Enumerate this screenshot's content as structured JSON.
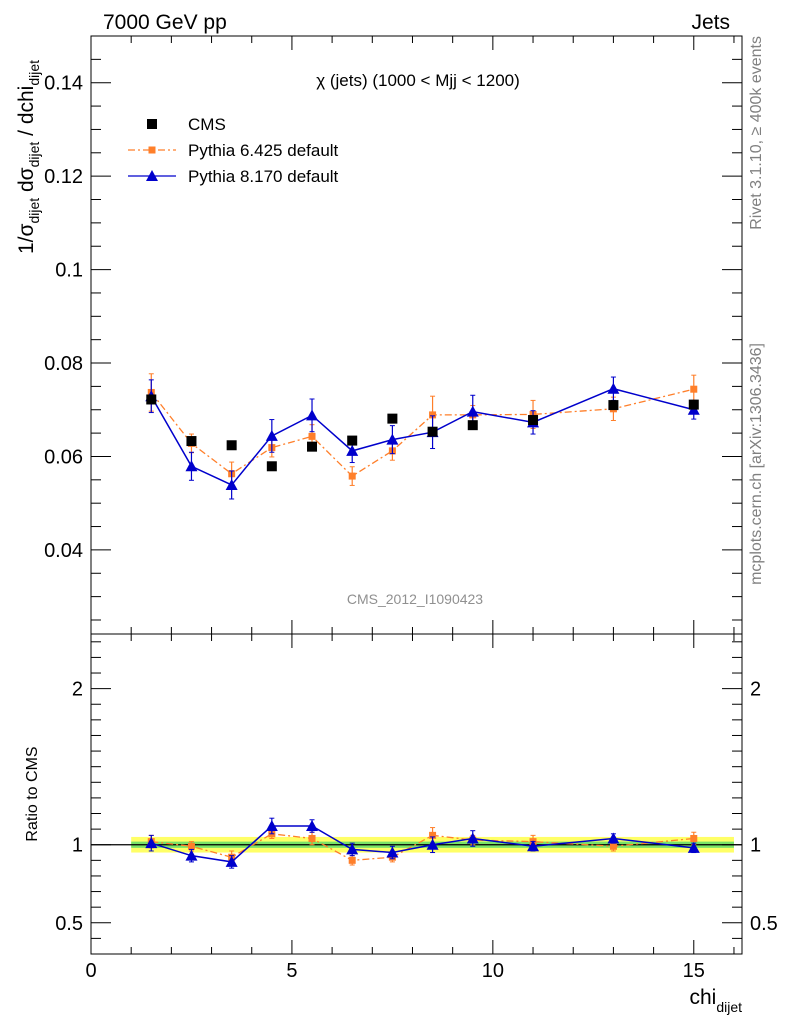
{
  "header": {
    "left": "7000 GeV pp",
    "right": "Jets"
  },
  "side_labels": {
    "rivet": "Rivet 3.1.10, ≥ 400k events",
    "mcplots": "mcplots.cern.ch [arXiv:1306.3436]"
  },
  "colors": {
    "cms": "#000000",
    "pythia6": "#ff7f2a",
    "pythia8": "#0000cc",
    "band_inner": "#4cd96a",
    "band_outer": "#ffff66"
  },
  "chart_data": [
    {
      "type": "scatter",
      "title": "χ (jets) (1000 < Mjj < 1200)",
      "watermark": "CMS_2012_I1090423",
      "ylabel": "1/σdijet dσdijet / dchidijet",
      "ylim": [
        0.022,
        0.15
      ],
      "xlim": [
        0,
        16.2
      ],
      "yticks": [
        {
          "v": 0.04,
          "label": "0.04"
        },
        {
          "v": 0.06,
          "label": "0.06"
        },
        {
          "v": 0.08,
          "label": "0.08"
        },
        {
          "v": 0.1,
          "label": "0.1"
        },
        {
          "v": 0.12,
          "label": "0.12"
        },
        {
          "v": 0.14,
          "label": "0.14"
        }
      ],
      "legend": [
        {
          "label": "CMS",
          "style": "square"
        },
        {
          "label": "Pythia 6.425 default",
          "style": "dashdot-square"
        },
        {
          "label": "Pythia 8.170 default",
          "style": "line-triangle"
        }
      ],
      "x": [
        1.5,
        2.5,
        3.5,
        4.5,
        5.5,
        6.5,
        7.5,
        8.5,
        9.5,
        11,
        13,
        15
      ],
      "series": [
        {
          "name": "CMS",
          "values": [
            0.0722,
            0.0633,
            0.0624,
            0.0579,
            0.0621,
            0.0634,
            0.0681,
            0.0653,
            0.0667,
            0.0678,
            0.071,
            0.0711
          ]
        },
        {
          "name": "Pythia 6.425 default",
          "values": [
            0.0737,
            0.0628,
            0.0563,
            0.0619,
            0.0643,
            0.0558,
            0.0612,
            0.0689,
            0.0689,
            0.069,
            0.0702,
            0.0744
          ],
          "err": [
            0.004,
            0.002,
            0.0025,
            0.002,
            0.0025,
            0.002,
            0.002,
            0.004,
            0.002,
            0.003,
            0.0025,
            0.003
          ]
        },
        {
          "name": "Pythia 8.170 default",
          "values": [
            0.0729,
            0.0579,
            0.0539,
            0.0644,
            0.0688,
            0.0612,
            0.0636,
            0.0652,
            0.0696,
            0.0673,
            0.0745,
            0.07
          ],
          "err": [
            0.0035,
            0.003,
            0.003,
            0.0035,
            0.0035,
            0.0025,
            0.003,
            0.0035,
            0.0035,
            0.0025,
            0.0025,
            0.002
          ]
        }
      ]
    },
    {
      "type": "scatter",
      "ylabel": "Ratio to CMS",
      "xlabel": "chidijet",
      "ylim": [
        0.3,
        2.35
      ],
      "xlim": [
        0,
        16.2
      ],
      "yticks": [
        {
          "v": 0.5,
          "label": "0.5"
        },
        {
          "v": 1,
          "label": "1"
        },
        {
          "v": 2,
          "label": "2"
        }
      ],
      "xticks": [
        {
          "v": 0,
          "label": "0"
        },
        {
          "v": 5,
          "label": "5"
        },
        {
          "v": 10,
          "label": "10"
        },
        {
          "v": 15,
          "label": "15"
        }
      ],
      "band_range": [
        1,
        16
      ],
      "x": [
        1.5,
        2.5,
        3.5,
        4.5,
        5.5,
        6.5,
        7.5,
        8.5,
        9.5,
        11,
        13,
        15
      ],
      "series": [
        {
          "name": "Pythia 6.425 default",
          "values": [
            1.02,
            0.99,
            0.92,
            1.07,
            1.04,
            0.9,
            0.92,
            1.06,
            1.03,
            1.02,
            0.99,
            1.04
          ],
          "err": [
            0.04,
            0.03,
            0.04,
            0.03,
            0.04,
            0.03,
            0.03,
            0.05,
            0.03,
            0.04,
            0.03,
            0.04
          ]
        },
        {
          "name": "Pythia 8.170 default",
          "values": [
            1.01,
            0.93,
            0.89,
            1.12,
            1.12,
            0.97,
            0.95,
            1.0,
            1.04,
            0.99,
            1.04,
            0.98
          ],
          "err": [
            0.05,
            0.04,
            0.04,
            0.05,
            0.04,
            0.04,
            0.04,
            0.05,
            0.05,
            0.03,
            0.03,
            0.03
          ]
        }
      ]
    }
  ]
}
